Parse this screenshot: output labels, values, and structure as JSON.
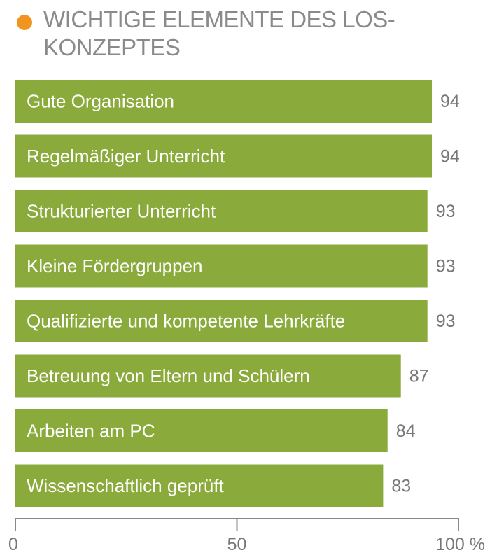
{
  "chart_data": {
    "type": "bar",
    "orientation": "horizontal",
    "title": "WICHTIGE ELEMENTE DES LOS-KONZEPTES",
    "categories": [
      "Gute Organisation",
      "Regelmäßiger Unterricht",
      "Strukturierter Unterricht",
      "Kleine Fördergruppen",
      "Qualifizierte und kompetente Lehrkräfte",
      "Betreuung von Eltern und Schülern",
      "Arbeiten am PC",
      "Wissenschaftlich geprüft"
    ],
    "values": [
      94,
      94,
      93,
      93,
      93,
      87,
      84,
      83
    ],
    "xlim": [
      0,
      100
    ],
    "ticks": [
      {
        "value": 0,
        "label": "0"
      },
      {
        "value": 50,
        "label": "50"
      },
      {
        "value": 100,
        "label": "100 %"
      }
    ],
    "bar_labels_inside": true,
    "value_labels": true,
    "grid": false,
    "colors": {
      "bar": "#8aab3c",
      "title_dot": "#f0961e",
      "title_text": "#8a8a8a",
      "value_text": "#777777",
      "axis": "#8a8a8a"
    }
  }
}
